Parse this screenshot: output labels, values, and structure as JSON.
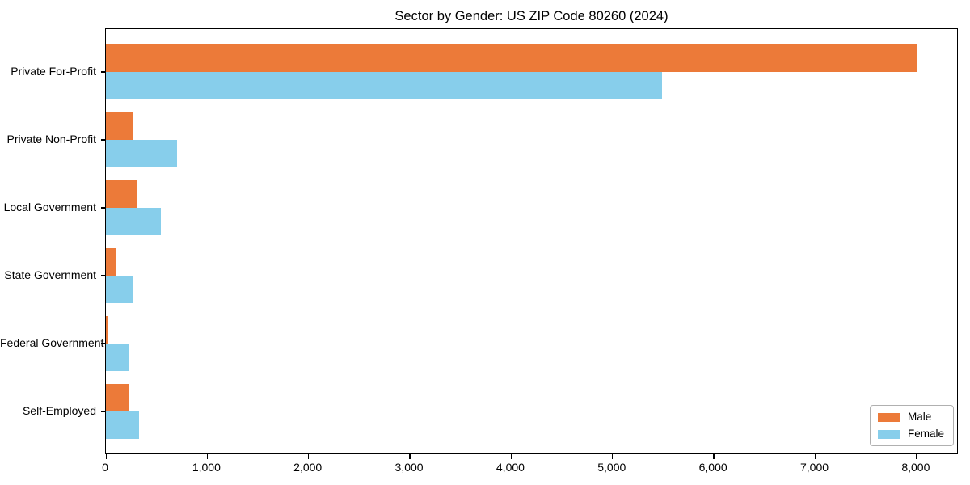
{
  "chart_data": {
    "type": "bar",
    "orientation": "horizontal",
    "title": "Sector by Gender: US ZIP Code 80260 (2024)",
    "categories": [
      "Private For-Profit",
      "Private Non-Profit",
      "Local Government",
      "State Government",
      "Federal Government",
      "Self-Employed"
    ],
    "series": [
      {
        "name": "Male",
        "color": "#ec7a39",
        "values": [
          8000,
          270,
          310,
          105,
          25,
          230
        ]
      },
      {
        "name": "Female",
        "color": "#87ceeb",
        "values": [
          5490,
          700,
          540,
          270,
          220,
          330
        ]
      }
    ],
    "xlabel": "",
    "ylabel": "",
    "xlim": [
      0,
      8400
    ],
    "xticks": [
      0,
      1000,
      2000,
      3000,
      4000,
      5000,
      6000,
      7000,
      8000
    ],
    "xtick_labels": [
      "0",
      "1,000",
      "2,000",
      "3,000",
      "4,000",
      "5,000",
      "6,000",
      "7,000",
      "8,000"
    ],
    "grid": false,
    "legend_position": "lower right",
    "axis_color": "#000000",
    "background_color": "#ffffff"
  }
}
